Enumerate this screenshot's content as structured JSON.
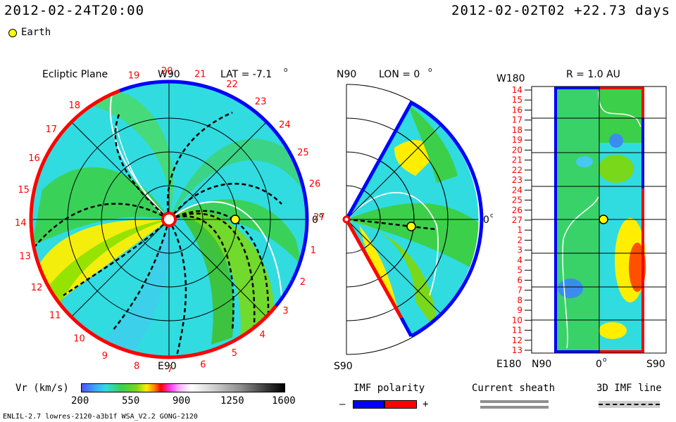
{
  "header": {
    "datetime_left": "2012-02-24T20:00",
    "datetime_right": "2012-02-02T02 +22.73 days",
    "legend_earth": "Earth"
  },
  "panels": {
    "ecliptic": {
      "title": "Ecliptic Plane",
      "lat": "LAT = -7.1",
      "lat_deg": "o",
      "top_label": "W90",
      "bottom_label": "E90",
      "right_label": "0",
      "right_label_deg": "o",
      "carrington_labels": [
        "19",
        "20",
        "21",
        "22",
        "23",
        "24",
        "25",
        "26",
        "27",
        "1",
        "2",
        "3",
        "4",
        "5",
        "6",
        "7",
        "8",
        "9",
        "10",
        "11",
        "12",
        "13",
        "14",
        "15",
        "16",
        "17",
        "18"
      ]
    },
    "meridional": {
      "north": "N90",
      "lon": "LON = 0",
      "lon_deg": "o",
      "right_label": "0",
      "right_label_deg": "o",
      "south": "S90"
    },
    "radial": {
      "title": "R = 1.0 AU",
      "top_left": "W180",
      "bottom_left": "E180",
      "y_labels": [
        "14",
        "15",
        "16",
        "17",
        "18",
        "19",
        "20",
        "21",
        "22",
        "23",
        "24",
        "25",
        "26",
        "27",
        "1",
        "2",
        "3",
        "4",
        "5",
        "6",
        "7",
        "8",
        "9",
        "10",
        "11",
        "12",
        "13"
      ],
      "x_labels": [
        "N90",
        "0",
        "S90"
      ],
      "x_mid_deg": "o"
    }
  },
  "colorbar": {
    "label": "Vr (km/s)",
    "ticks": [
      "200",
      "550",
      "900",
      "1250",
      "1600"
    ]
  },
  "legends": {
    "imf_polarity": "IMF polarity",
    "imf_minus": "–",
    "imf_plus": "+",
    "current_sheath": "Current sheath",
    "imf_line": "3D IMF line"
  },
  "footer": {
    "model_info": "ENLIL-2.7 lowres-2120-a3b1f WSA_V2.2 GONG-2120"
  },
  "colors": {
    "negative_polarity": "#0000ff",
    "positive_polarity": "#ff0000",
    "earth_marker": "#ffff00"
  }
}
